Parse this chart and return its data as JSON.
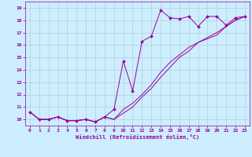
{
  "xlabel": "Windchill (Refroidissement éolien,°C)",
  "background_color": "#cceeff",
  "line_color": "#990099",
  "grid_color": "#b0c8c8",
  "xlim": [
    -0.5,
    23.5
  ],
  "ylim": [
    9.5,
    19.5
  ],
  "xticks": [
    0,
    1,
    2,
    3,
    4,
    5,
    6,
    7,
    8,
    9,
    10,
    11,
    12,
    13,
    14,
    15,
    16,
    17,
    18,
    19,
    20,
    21,
    22,
    23
  ],
  "yticks": [
    10,
    11,
    12,
    13,
    14,
    15,
    16,
    17,
    18,
    19
  ],
  "series1_x": [
    0,
    1,
    2,
    3,
    4,
    5,
    6,
    7,
    8,
    9,
    10,
    11,
    12,
    13,
    14,
    15,
    16,
    17,
    18,
    19,
    20,
    21,
    22,
    23
  ],
  "series1_y": [
    10.6,
    10.0,
    10.0,
    10.2,
    9.9,
    9.9,
    10.0,
    9.8,
    10.2,
    10.8,
    14.7,
    12.3,
    16.3,
    16.7,
    18.8,
    18.2,
    18.1,
    18.3,
    17.5,
    18.3,
    18.3,
    17.6,
    18.2,
    18.3
  ],
  "series2_x": [
    0,
    1,
    2,
    3,
    4,
    5,
    6,
    7,
    8,
    9,
    10,
    11,
    12,
    13,
    14,
    15,
    16,
    17,
    18,
    19,
    20,
    21,
    22,
    23
  ],
  "series2_y": [
    10.6,
    10.0,
    10.0,
    10.2,
    9.9,
    9.9,
    10.0,
    9.8,
    10.2,
    10.0,
    10.8,
    11.3,
    12.0,
    12.8,
    13.8,
    14.6,
    15.2,
    15.8,
    16.2,
    16.5,
    16.8,
    17.5,
    18.0,
    18.3
  ],
  "series3_x": [
    0,
    1,
    2,
    3,
    4,
    5,
    6,
    7,
    8,
    9,
    10,
    11,
    12,
    13,
    14,
    15,
    16,
    17,
    18,
    19,
    20,
    21,
    22,
    23
  ],
  "series3_y": [
    10.6,
    10.0,
    10.0,
    10.2,
    9.9,
    9.9,
    10.0,
    9.8,
    10.2,
    10.0,
    10.5,
    11.0,
    11.8,
    12.5,
    13.4,
    14.2,
    15.0,
    15.5,
    16.2,
    16.6,
    17.0,
    17.5,
    18.0,
    18.3
  ]
}
